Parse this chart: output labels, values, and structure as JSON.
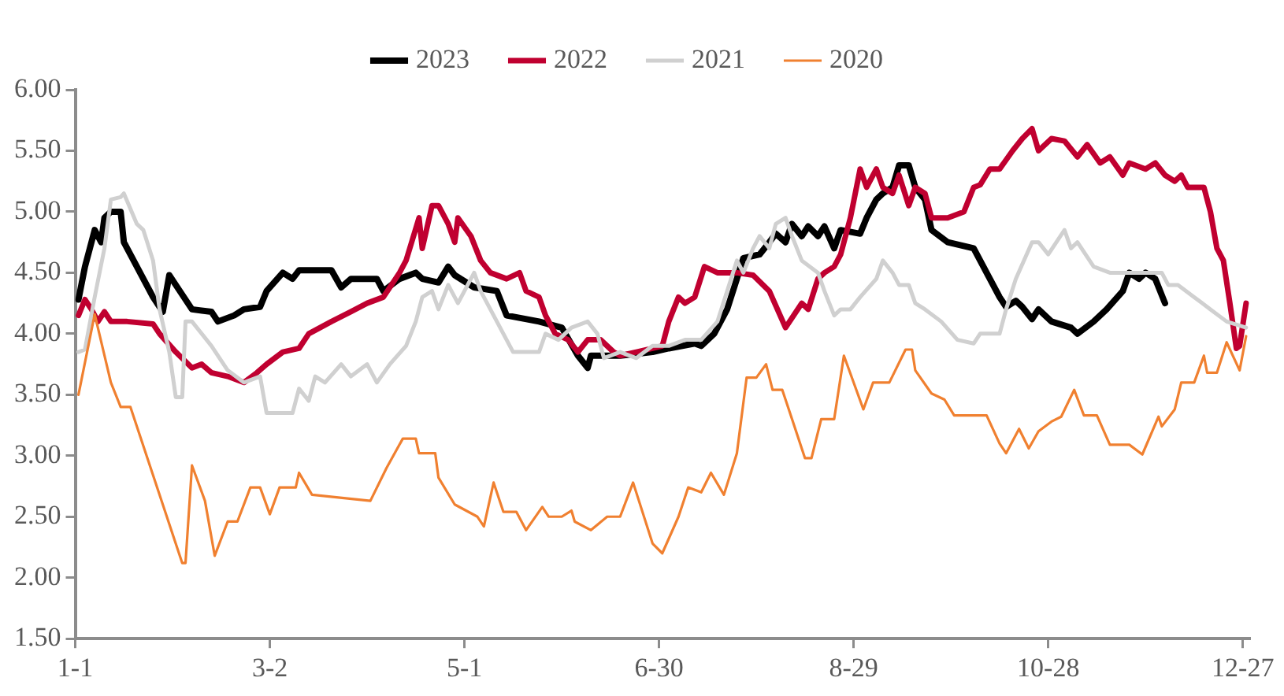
{
  "chart_data": {
    "type": "line",
    "legend": "top",
    "marker": "none",
    "line_style": "solid",
    "grid": false,
    "xlim": [
      "--01-01",
      "--12-29"
    ],
    "xticks": [
      {
        "value": "--01-01",
        "label": "1-1"
      },
      {
        "value": "--03-02",
        "label": "3-2"
      },
      {
        "value": "--05-01",
        "label": "5-1"
      },
      {
        "value": "--06-30",
        "label": "6-30"
      },
      {
        "value": "--08-29",
        "label": "8-29"
      },
      {
        "value": "--10-28",
        "label": "10-28"
      },
      {
        "value": "--12-27",
        "label": "12-27"
      }
    ],
    "ylim": [
      1.5,
      6
    ],
    "yticks": [
      {
        "value": 1.5,
        "label": "1.50"
      },
      {
        "value": 2,
        "label": "2.00"
      },
      {
        "value": 2.5,
        "label": "2.50"
      },
      {
        "value": 3,
        "label": "3.00"
      },
      {
        "value": 3.5,
        "label": "3.50"
      },
      {
        "value": 4,
        "label": "4.00"
      },
      {
        "value": 4.5,
        "label": "4.50"
      },
      {
        "value": 5,
        "label": "5.00"
      },
      {
        "value": 5.5,
        "label": "5.50"
      },
      {
        "value": 6,
        "label": "6.00"
      }
    ],
    "series": [
      {
        "name": "2023",
        "color": "#000000",
        "x": [
          "--01-02",
          "--01-04",
          "--01-07",
          "--01-09",
          "--01-10",
          "--01-12",
          "--01-15",
          "--01-16",
          "--01-20",
          "--01-25",
          "--01-28",
          "--01-30",
          "--02-01",
          "--02-06",
          "--02-12",
          "--02-14",
          "--02-19",
          "--02-22",
          "--02-27",
          "--03-01",
          "--03-06",
          "--03-09",
          "--03-11",
          "--03-21",
          "--03-24",
          "--03-27",
          "--04-04",
          "--04-06",
          "--04-11",
          "--04-16",
          "--04-18",
          "--04-23",
          "--04-26",
          "--04-28",
          "--05-04",
          "--05-11",
          "--05-14",
          "--05-24",
          "--05-31",
          "--06-05",
          "--06-08",
          "--06-09",
          "--06-18",
          "--06-28",
          "--07-03",
          "--07-11",
          "--07-13",
          "--07-17",
          "--07-21",
          "--07-24",
          "--07-26",
          "--07-31",
          "--08-03",
          "--08-05",
          "--08-08",
          "--08-10",
          "--08-13",
          "--08-15",
          "--08-18",
          "--08-20",
          "--08-23",
          "--08-25",
          "--08-31",
          "--09-02",
          "--09-05",
          "--09-07",
          "--09-10",
          "--09-12",
          "--09-15",
          "--09-17",
          "--09-20",
          "--09-22",
          "--09-27",
          "--10-05",
          "--10-07",
          "--10-10",
          "--10-13",
          "--10-15",
          "--10-18",
          "--10-20",
          "--10-23",
          "--10-25",
          "--10-29",
          "--11-04",
          "--11-06",
          "--11-11",
          "--11-15",
          "--11-20",
          "--11-22",
          "--11-25",
          "--11-27",
          "--11-30",
          "--12-03"
        ],
        "values": [
          4.28,
          4.55,
          4.85,
          4.75,
          4.95,
          5.0,
          5.0,
          4.75,
          4.55,
          4.3,
          4.18,
          4.48,
          4.4,
          4.2,
          4.18,
          4.1,
          4.15,
          4.2,
          4.22,
          4.35,
          4.5,
          4.45,
          4.52,
          4.52,
          4.38,
          4.45,
          4.45,
          4.35,
          4.45,
          4.5,
          4.45,
          4.42,
          4.55,
          4.48,
          4.38,
          4.35,
          4.15,
          4.1,
          4.05,
          3.82,
          3.72,
          3.82,
          3.82,
          3.85,
          3.88,
          3.92,
          3.9,
          4.0,
          4.2,
          4.45,
          4.62,
          4.65,
          4.75,
          4.82,
          4.75,
          4.9,
          4.8,
          4.88,
          4.8,
          4.88,
          4.7,
          4.85,
          4.82,
          4.95,
          5.1,
          5.15,
          5.2,
          5.38,
          5.38,
          5.2,
          5.1,
          4.85,
          4.75,
          4.7,
          4.6,
          4.45,
          4.3,
          4.22,
          4.27,
          4.22,
          4.12,
          4.2,
          4.1,
          4.05,
          4.0,
          4.1,
          4.2,
          4.35,
          4.5,
          4.45,
          4.5,
          4.45,
          4.25
        ]
      },
      {
        "name": "2022",
        "color": "#c00030",
        "x": [
          "--01-02",
          "--01-04",
          "--01-06",
          "--01-08",
          "--01-10",
          "--01-12",
          "--01-17",
          "--01-25",
          "--01-27",
          "--02-01",
          "--02-06",
          "--02-09",
          "--02-12",
          "--02-17",
          "--02-22",
          "--02-26",
          "--03-01",
          "--03-06",
          "--03-11",
          "--03-14",
          "--03-21",
          "--03-27",
          "--04-01",
          "--04-06",
          "--04-11",
          "--04-13",
          "--04-17",
          "--04-18",
          "--04-21",
          "--04-23",
          "--04-26",
          "--04-28",
          "--04-29",
          "--05-03",
          "--05-06",
          "--05-09",
          "--05-14",
          "--05-18",
          "--05-20",
          "--05-24",
          "--05-26",
          "--05-29",
          "--06-02",
          "--06-05",
          "--06-08",
          "--06-12",
          "--06-16",
          "--06-18",
          "--06-23",
          "--06-28",
          "--07-01",
          "--07-03",
          "--07-06",
          "--07-08",
          "--07-11",
          "--07-14",
          "--07-18",
          "--07-24",
          "--07-29",
          "--08-03",
          "--08-08",
          "--08-13",
          "--08-15",
          "--08-18",
          "--08-20",
          "--08-23",
          "--08-25",
          "--08-28",
          "--08-31",
          "--09-02",
          "--09-05",
          "--09-07",
          "--09-10",
          "--09-12",
          "--09-15",
          "--09-17",
          "--09-20",
          "--09-22",
          "--09-27",
          "--10-02",
          "--10-05",
          "--10-07",
          "--10-10",
          "--10-13",
          "--10-17",
          "--10-20",
          "--10-23",
          "--10-25",
          "--10-29",
          "--11-02",
          "--11-06",
          "--11-09",
          "--11-13",
          "--11-16",
          "--11-20",
          "--11-22",
          "--11-27",
          "--11-30",
          "--12-03",
          "--12-06",
          "--12-08",
          "--12-10",
          "--12-15",
          "--12-17",
          "--12-19",
          "--12-21",
          "--12-23",
          "--12-25",
          "--12-26",
          "--12-28"
        ],
        "values": [
          4.15,
          4.28,
          4.2,
          4.1,
          4.18,
          4.1,
          4.1,
          4.08,
          4.0,
          3.85,
          3.72,
          3.75,
          3.68,
          3.65,
          3.6,
          3.68,
          3.75,
          3.85,
          3.88,
          4.0,
          4.1,
          4.18,
          4.25,
          4.3,
          4.5,
          4.6,
          4.95,
          4.7,
          5.05,
          5.05,
          4.9,
          4.75,
          4.95,
          4.8,
          4.6,
          4.5,
          4.45,
          4.5,
          4.35,
          4.3,
          4.15,
          4.0,
          3.95,
          3.85,
          3.95,
          3.95,
          3.85,
          3.82,
          3.85,
          3.88,
          3.9,
          4.1,
          4.3,
          4.25,
          4.3,
          4.55,
          4.5,
          4.5,
          4.48,
          4.35,
          4.05,
          4.25,
          4.2,
          4.45,
          4.5,
          4.55,
          4.65,
          4.95,
          5.35,
          5.2,
          5.35,
          5.2,
          5.15,
          5.3,
          5.05,
          5.2,
          5.15,
          4.95,
          4.95,
          5.0,
          5.2,
          5.22,
          5.35,
          5.35,
          5.5,
          5.6,
          5.68,
          5.5,
          5.6,
          5.58,
          5.45,
          5.55,
          5.4,
          5.45,
          5.3,
          5.4,
          5.35,
          5.4,
          5.3,
          5.25,
          5.3,
          5.2,
          5.2,
          5.0,
          4.7,
          4.6,
          4.25,
          3.88,
          3.9,
          4.25
        ]
      },
      {
        "name": "2021",
        "color": "#d0d0d0",
        "x": [
          "--01-02",
          "--01-04",
          "--01-07",
          "--01-10",
          "--01-12",
          "--01-15",
          "--01-16",
          "--01-20",
          "--01-22",
          "--01-25",
          "--01-27",
          "--01-30",
          "--02-01",
          "--02-03",
          "--02-04",
          "--02-06",
          "--02-12",
          "--02-17",
          "--02-22",
          "--02-27",
          "--03-01",
          "--03-09",
          "--03-11",
          "--03-14",
          "--03-16",
          "--03-19",
          "--03-24",
          "--03-27",
          "--04-01",
          "--04-04",
          "--04-08",
          "--04-13",
          "--04-16",
          "--04-18",
          "--04-21",
          "--04-23",
          "--04-26",
          "--04-29",
          "--05-04",
          "--05-06",
          "--05-11",
          "--05-14",
          "--05-16",
          "--05-24",
          "--05-26",
          "--05-30",
          "--06-03",
          "--06-08",
          "--06-11",
          "--06-13",
          "--06-18",
          "--06-23",
          "--06-28",
          "--07-03",
          "--07-08",
          "--07-13",
          "--07-18",
          "--07-21",
          "--07-24",
          "--07-26",
          "--07-29",
          "--07-31",
          "--08-03",
          "--08-05",
          "--08-08",
          "--08-10",
          "--08-13",
          "--08-18",
          "--08-20",
          "--08-23",
          "--08-25",
          "--08-28",
          "--08-31",
          "--09-05",
          "--09-07",
          "--09-10",
          "--09-12",
          "--09-15",
          "--09-17",
          "--09-20",
          "--09-25",
          "--09-30",
          "--10-05",
          "--10-07",
          "--10-13",
          "--10-15",
          "--10-18",
          "--10-23",
          "--10-25",
          "--10-28",
          "--11-02",
          "--11-04",
          "--11-06",
          "--11-11",
          "--11-16",
          "--11-22",
          "--12-02",
          "--12-04",
          "--12-07",
          "--12-12",
          "--12-17",
          "--12-22",
          "--12-28"
        ],
        "values": [
          3.85,
          3.87,
          4.3,
          4.7,
          5.1,
          5.12,
          5.15,
          4.9,
          4.85,
          4.6,
          4.2,
          3.85,
          3.48,
          3.48,
          4.1,
          4.1,
          3.9,
          3.7,
          3.6,
          3.65,
          3.35,
          3.35,
          3.55,
          3.45,
          3.65,
          3.6,
          3.75,
          3.65,
          3.75,
          3.6,
          3.75,
          3.9,
          4.1,
          4.3,
          4.35,
          4.2,
          4.4,
          4.25,
          4.5,
          4.35,
          4.1,
          3.95,
          3.85,
          3.85,
          4.0,
          3.95,
          4.05,
          4.1,
          4.0,
          3.8,
          3.85,
          3.8,
          3.9,
          3.9,
          3.95,
          3.95,
          4.1,
          4.35,
          4.6,
          4.5,
          4.7,
          4.8,
          4.7,
          4.9,
          4.95,
          4.8,
          4.6,
          4.5,
          4.35,
          4.15,
          4.2,
          4.2,
          4.3,
          4.45,
          4.6,
          4.5,
          4.4,
          4.4,
          4.25,
          4.2,
          4.1,
          3.95,
          3.92,
          4.0,
          4.0,
          4.2,
          4.45,
          4.75,
          4.75,
          4.65,
          4.85,
          4.7,
          4.75,
          4.55,
          4.5,
          4.5,
          4.5,
          4.4,
          4.4,
          4.3,
          4.2,
          4.1,
          4.05
        ]
      },
      {
        "name": "2020",
        "color": "#f08030",
        "x": [
          "--01-02",
          "--01-07",
          "--01-12",
          "--01-15",
          "--01-18",
          "--02-03",
          "--02-04",
          "--02-06",
          "--02-10",
          "--02-13",
          "--02-17",
          "--02-20",
          "--02-24",
          "--02-27",
          "--03-02",
          "--03-05",
          "--03-10",
          "--03-11",
          "--03-15",
          "--04-02",
          "--04-07",
          "--04-12",
          "--04-16",
          "--04-17",
          "--04-22",
          "--04-23",
          "--04-28",
          "--05-05",
          "--05-07",
          "--05-10",
          "--05-13",
          "--05-17",
          "--05-20",
          "--05-25",
          "--05-27",
          "--05-31",
          "--06-03",
          "--06-04",
          "--06-09",
          "--06-14",
          "--06-18",
          "--06-22",
          "--06-28",
          "--07-01",
          "--07-06",
          "--07-09",
          "--07-13",
          "--07-16",
          "--07-20",
          "--07-24",
          "--07-27",
          "--07-30",
          "--08-02",
          "--08-04",
          "--08-07",
          "--08-10",
          "--08-14",
          "--08-16",
          "--08-19",
          "--08-23",
          "--08-26",
          "--09-01",
          "--09-04",
          "--09-09",
          "--09-14",
          "--09-16",
          "--09-17",
          "--09-22",
          "--09-26",
          "--09-29",
          "--10-09",
          "--10-13",
          "--10-15",
          "--10-19",
          "--10-22",
          "--10-25",
          "--10-29",
          "--11-01",
          "--11-05",
          "--11-08",
          "--11-12",
          "--11-16",
          "--11-22",
          "--11-26",
          "--12-01",
          "--12-02",
          "--12-06",
          "--12-08",
          "--12-12",
          "--12-15",
          "--12-16",
          "--12-19",
          "--12-22",
          "--12-26",
          "--12-28"
        ],
        "values": [
          3.5,
          4.16,
          3.6,
          3.4,
          3.4,
          2.12,
          2.12,
          2.92,
          2.63,
          2.18,
          2.46,
          2.46,
          2.74,
          2.74,
          2.52,
          2.74,
          2.74,
          2.86,
          2.68,
          2.63,
          2.9,
          3.14,
          3.14,
          3.02,
          3.02,
          2.82,
          2.6,
          2.5,
          2.42,
          2.78,
          2.54,
          2.54,
          2.39,
          2.58,
          2.5,
          2.5,
          2.55,
          2.46,
          2.39,
          2.5,
          2.5,
          2.78,
          2.28,
          2.2,
          2.5,
          2.74,
          2.7,
          2.86,
          2.68,
          3.02,
          3.64,
          3.64,
          3.75,
          3.54,
          3.54,
          3.3,
          2.98,
          2.98,
          3.3,
          3.3,
          3.82,
          3.38,
          3.6,
          3.6,
          3.87,
          3.87,
          3.7,
          3.51,
          3.46,
          3.33,
          3.33,
          3.1,
          3.02,
          3.22,
          3.06,
          3.2,
          3.28,
          3.32,
          3.54,
          3.33,
          3.33,
          3.09,
          3.09,
          3.01,
          3.32,
          3.24,
          3.38,
          3.6,
          3.6,
          3.82,
          3.68,
          3.68,
          3.93,
          3.7,
          3.98
        ]
      }
    ]
  }
}
